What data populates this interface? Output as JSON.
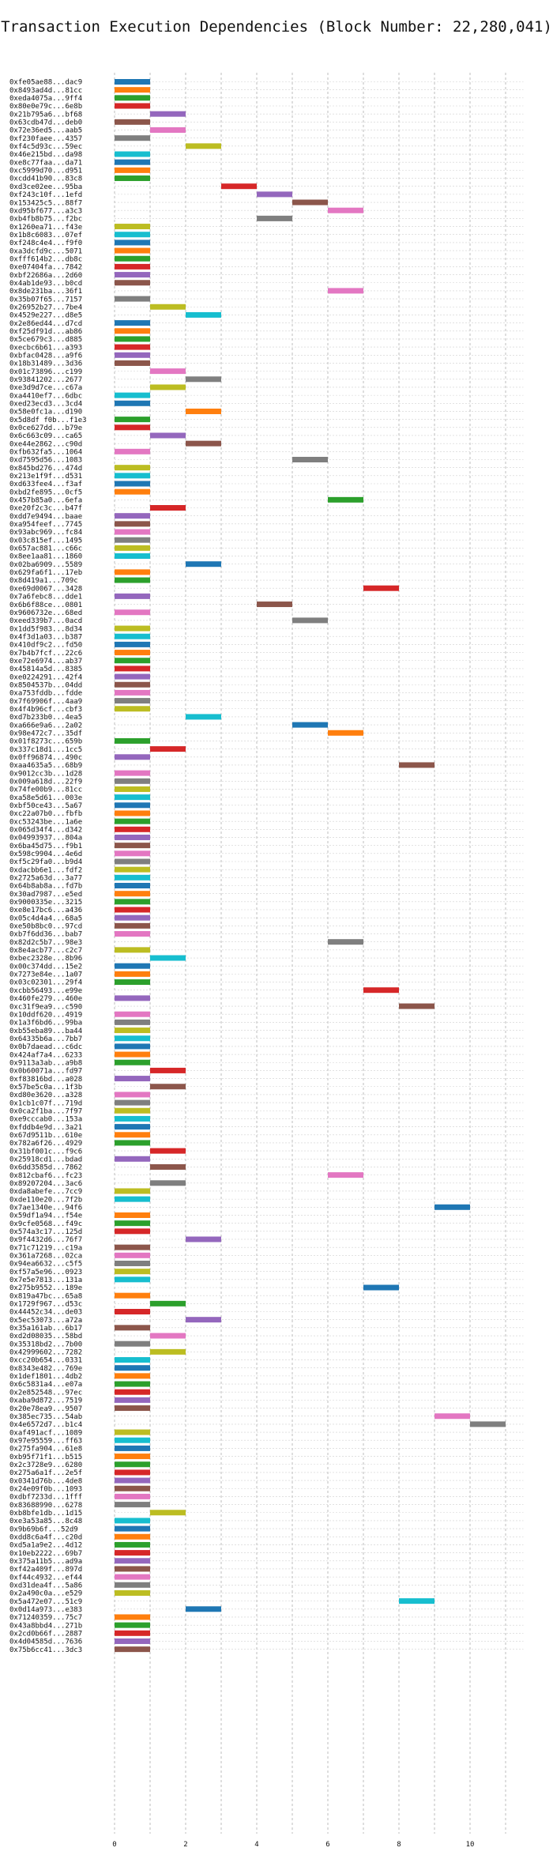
{
  "chart_data": {
    "type": "bar",
    "subtype": "horizontal-gantt",
    "title": "Transaction Execution Dependencies (Block Number: 22,280,041)",
    "xlabel": "",
    "ylabel": "",
    "xlim": [
      0,
      11.5
    ],
    "xticks": [
      0,
      2,
      4,
      6,
      8,
      10
    ],
    "grid": true,
    "palette": [
      "#1f77b4",
      "#ff7f0e",
      "#2ca02c",
      "#d62728",
      "#9467bd",
      "#8c564b",
      "#e377c2",
      "#7f7f7f",
      "#bcbd22",
      "#17becf"
    ],
    "tasks": [
      {
        "tx": "0xfe05ae88...dac9",
        "start": 0
      },
      {
        "tx": "0x8493ad4d...81cc",
        "start": 0
      },
      {
        "tx": "0xeda4075a...9ff4",
        "start": 0
      },
      {
        "tx": "0x80e0e79c...6e8b",
        "start": 0
      },
      {
        "tx": "0x21b795a6...bf68",
        "start": 1
      },
      {
        "tx": "0x63cdb47d...deb0",
        "start": 0
      },
      {
        "tx": "0x72e36ed5...aab5",
        "start": 1
      },
      {
        "tx": "0xf230faee...4357",
        "start": 0
      },
      {
        "tx": "0xf4c5d93c...59ec",
        "start": 2
      },
      {
        "tx": "0x46e215bd...da98",
        "start": 0
      },
      {
        "tx": "0xe8c77faa...da71",
        "start": 0
      },
      {
        "tx": "0xc5999d70...d951",
        "start": 0
      },
      {
        "tx": "0xcdd41b90...83c8",
        "start": 0
      },
      {
        "tx": "0xd3ce02ee...95ba",
        "start": 3
      },
      {
        "tx": "0xf243c10f...1efd",
        "start": 4
      },
      {
        "tx": "0x153425c5...88f7",
        "start": 5
      },
      {
        "tx": "0xd95bf677...a3c3",
        "start": 6
      },
      {
        "tx": "0xb4fb8b75...f2bc",
        "start": 4
      },
      {
        "tx": "0x1260ea71...f43e",
        "start": 0
      },
      {
        "tx": "0x1b8c6083...07ef",
        "start": 0
      },
      {
        "tx": "0xf248c4e4...f9f0",
        "start": 0
      },
      {
        "tx": "0xa3dcfd9c...5071",
        "start": 0
      },
      {
        "tx": "0xfff614b2...db8c",
        "start": 0
      },
      {
        "tx": "0xe07404fa...7842",
        "start": 0
      },
      {
        "tx": "0xbf22686a...2d60",
        "start": 0
      },
      {
        "tx": "0x4ab1de93...b0cd",
        "start": 0
      },
      {
        "tx": "0x8de231ba...36f1",
        "start": 6
      },
      {
        "tx": "0x35b07f65...7157",
        "start": 0
      },
      {
        "tx": "0x26952b27...7be4",
        "start": 1
      },
      {
        "tx": "0x4529e227...d8e5",
        "start": 2
      },
      {
        "tx": "0x2e86ed44...d7cd",
        "start": 0
      },
      {
        "tx": "0xf25df91d...ab86",
        "start": 0
      },
      {
        "tx": "0x5ce679c3...d885",
        "start": 0
      },
      {
        "tx": "0xecbc6b61...a393",
        "start": 0
      },
      {
        "tx": "0xbfac0428...a9f6",
        "start": 0
      },
      {
        "tx": "0x18b31489...3d36",
        "start": 0
      },
      {
        "tx": "0x01c73896...c199",
        "start": 1
      },
      {
        "tx": "0x93841202...2677",
        "start": 2
      },
      {
        "tx": "0xe3d9d7ce...c67a",
        "start": 1
      },
      {
        "tx": "0xa4410ef7...6dbc",
        "start": 0
      },
      {
        "tx": "0xed23ecd3...3cd4",
        "start": 0
      },
      {
        "tx": "0x58e0fc1a...d190",
        "start": 2
      },
      {
        "tx": "0x5d8df f0b...f1e3",
        "start": 0
      },
      {
        "tx": "0x0ce627dd...b79e",
        "start": 0
      },
      {
        "tx": "0x6c663c09...ca65",
        "start": 1
      },
      {
        "tx": "0xe44e2862...c90d",
        "start": 2
      },
      {
        "tx": "0xfb632fa5...1064",
        "start": 0
      },
      {
        "tx": "0xd7595d56...1083",
        "start": 5
      },
      {
        "tx": "0x845bd276...474d",
        "start": 0
      },
      {
        "tx": "0x213e1f9f...d531",
        "start": 0
      },
      {
        "tx": "0xd633fee4...f3af",
        "start": 0
      },
      {
        "tx": "0xbd2fe895...0cf5",
        "start": 0
      },
      {
        "tx": "0x457b85a0...6efa",
        "start": 6
      },
      {
        "tx": "0xe20f2c3c...b47f",
        "start": 1
      },
      {
        "tx": "0xdd7e9494...baae",
        "start": 0
      },
      {
        "tx": "0xa954feef...7745",
        "start": 0
      },
      {
        "tx": "0x93abc969...fc84",
        "start": 0
      },
      {
        "tx": "0x03c815ef...1495",
        "start": 0
      },
      {
        "tx": "0x657ac881...c66c",
        "start": 0
      },
      {
        "tx": "0x8ee1aa81...1860",
        "start": 0
      },
      {
        "tx": "0x02ba6909...5589",
        "start": 2
      },
      {
        "tx": "0x629fa6f1...17eb",
        "start": 0
      },
      {
        "tx": "0x8d419a1...709c",
        "start": 0
      },
      {
        "tx": "0xe69d0067...3428",
        "start": 7
      },
      {
        "tx": "0x7a6febc8...dde1",
        "start": 0
      },
      {
        "tx": "0x6b6f88ce...0801",
        "start": 4
      },
      {
        "tx": "0x9606732e...68ed",
        "start": 0
      },
      {
        "tx": "0xeed339b7...0acd",
        "start": 5
      },
      {
        "tx": "0x1dd5f983...8d34",
        "start": 0
      },
      {
        "tx": "0x4f3d1a03...b387",
        "start": 0
      },
      {
        "tx": "0x410df9c2...fd50",
        "start": 0
      },
      {
        "tx": "0x7b4b7fcf...22c6",
        "start": 0
      },
      {
        "tx": "0xe72e6974...ab37",
        "start": 0
      },
      {
        "tx": "0x45814a5d...8385",
        "start": 0
      },
      {
        "tx": "0xe0224291...42f4",
        "start": 0
      },
      {
        "tx": "0x8504537b...04dd",
        "start": 0
      },
      {
        "tx": "0xa753fddb...fdde",
        "start": 0
      },
      {
        "tx": "0x7f69906f...4aa9",
        "start": 0
      },
      {
        "tx": "0x4f4b96cf...cbf3",
        "start": 0
      },
      {
        "tx": "0xd7b233b0...4ea5",
        "start": 2
      },
      {
        "tx": "0xa666e9a6...2a02",
        "start": 5
      },
      {
        "tx": "0x98e472c7...35df",
        "start": 6
      },
      {
        "tx": "0x01f8273c...659b",
        "start": 0
      },
      {
        "tx": "0x337c18d1...1cc5",
        "start": 1
      },
      {
        "tx": "0x0ff96874...490c",
        "start": 0
      },
      {
        "tx": "0xaa4635a5...68b9",
        "start": 8
      },
      {
        "tx": "0x9012cc3b...1d28",
        "start": 0
      },
      {
        "tx": "0x009a618d...22f9",
        "start": 0
      },
      {
        "tx": "0x74fe00b9...81cc",
        "start": 0
      },
      {
        "tx": "0xa58e5d61...003e",
        "start": 0
      },
      {
        "tx": "0xbf50ce43...5a67",
        "start": 0
      },
      {
        "tx": "0xc22a07b0...fbfb",
        "start": 0
      },
      {
        "tx": "0xc53243be...1a6e",
        "start": 0
      },
      {
        "tx": "0x065d34f4...d342",
        "start": 0
      },
      {
        "tx": "0x04993937...804a",
        "start": 0
      },
      {
        "tx": "0x6ba45d75...f9b1",
        "start": 0
      },
      {
        "tx": "0x598c9904...4e6d",
        "start": 0
      },
      {
        "tx": "0xf5c29fa0...b9d4",
        "start": 0
      },
      {
        "tx": "0xdacbb6e1...fdf2",
        "start": 0
      },
      {
        "tx": "0x2725a63d...3a77",
        "start": 0
      },
      {
        "tx": "0x64b8ab8a...fd7b",
        "start": 0
      },
      {
        "tx": "0x30ad7987...e5ed",
        "start": 0
      },
      {
        "tx": "0x9000335e...3215",
        "start": 0
      },
      {
        "tx": "0xe8e17bc6...a436",
        "start": 0
      },
      {
        "tx": "0x05c4d4a4...68a5",
        "start": 0
      },
      {
        "tx": "0xe50b8bc0...97cd",
        "start": 0
      },
      {
        "tx": "0xb7f6dd36...bab7",
        "start": 0
      },
      {
        "tx": "0x82d2c5b7...98e3",
        "start": 6
      },
      {
        "tx": "0x8e4acb77...c2c7",
        "start": 0
      },
      {
        "tx": "0xbec2328e...8b96",
        "start": 1
      },
      {
        "tx": "0x00c374dd...15e2",
        "start": 0
      },
      {
        "tx": "0x7273e84e...1a07",
        "start": 0
      },
      {
        "tx": "0x03c02301...29f4",
        "start": 0
      },
      {
        "tx": "0xcbb56493...e99e",
        "start": 7
      },
      {
        "tx": "0x460fe279...460e",
        "start": 0
      },
      {
        "tx": "0xc31f9ea9...c590",
        "start": 8
      },
      {
        "tx": "0x10ddf620...4919",
        "start": 0
      },
      {
        "tx": "0x1a3f6bd6...99ba",
        "start": 0
      },
      {
        "tx": "0xb55eba89...ba44",
        "start": 0
      },
      {
        "tx": "0x64335b6a...7bb7",
        "start": 0
      },
      {
        "tx": "0x0b7daead...c6dc",
        "start": 0
      },
      {
        "tx": "0x424af7a4...6233",
        "start": 0
      },
      {
        "tx": "0x9113a3ab...a9b8",
        "start": 0
      },
      {
        "tx": "0x0b60071a...fd97",
        "start": 1
      },
      {
        "tx": "0xf83816bd...a028",
        "start": 0
      },
      {
        "tx": "0x57be5c0a...1f3b",
        "start": 1
      },
      {
        "tx": "0xd80e3620...a328",
        "start": 0
      },
      {
        "tx": "0x1cb1c07f...719d",
        "start": 0
      },
      {
        "tx": "0x0ca2f1ba...7f97",
        "start": 0
      },
      {
        "tx": "0xe9cccab0...153a",
        "start": 0
      },
      {
        "tx": "0xfddb4e9d...3a21",
        "start": 0
      },
      {
        "tx": "0x67d9511b...610e",
        "start": 0
      },
      {
        "tx": "0x782a6f26...4929",
        "start": 0
      },
      {
        "tx": "0x31bf001c...f9c6",
        "start": 1
      },
      {
        "tx": "0x25918cd1...bdad",
        "start": 0
      },
      {
        "tx": "0x6dd3585d...7862",
        "start": 1
      },
      {
        "tx": "0x812cbaf6...fc23",
        "start": 6
      },
      {
        "tx": "0x89207204...3ac6",
        "start": 1
      },
      {
        "tx": "0xda8abefe...7cc9",
        "start": 0
      },
      {
        "tx": "0xde110e20...7f2b",
        "start": 0
      },
      {
        "tx": "0x7ae1340e...94f6",
        "start": 9
      },
      {
        "tx": "0x59df1a94...f54e",
        "start": 0
      },
      {
        "tx": "0x9cfe0568...f49c",
        "start": 0
      },
      {
        "tx": "0x574a3c17...125d",
        "start": 0
      },
      {
        "tx": "0x9f4432d6...76f7",
        "start": 2
      },
      {
        "tx": "0x71c71219...c19a",
        "start": 0
      },
      {
        "tx": "0x361a7268...02ca",
        "start": 0
      },
      {
        "tx": "0x94ea6632...c5f5",
        "start": 0
      },
      {
        "tx": "0xf57a5e96...0923",
        "start": 0
      },
      {
        "tx": "0x7e5e7813...131a",
        "start": 0
      },
      {
        "tx": "0x275b9552...189e",
        "start": 7
      },
      {
        "tx": "0x819a47bc...65a8",
        "start": 0
      },
      {
        "tx": "0x1729f967...d53c",
        "start": 1
      },
      {
        "tx": "0x44452c34...de03",
        "start": 0
      },
      {
        "tx": "0x5ec53073...a72a",
        "start": 2
      },
      {
        "tx": "0x35a161ab...6b17",
        "start": 0
      },
      {
        "tx": "0xd2d08035...58bd",
        "start": 1
      },
      {
        "tx": "0x35318bd2...7b00",
        "start": 0
      },
      {
        "tx": "0x42999602...7282",
        "start": 1
      },
      {
        "tx": "0xcc20b654...0331",
        "start": 0
      },
      {
        "tx": "0x8343e482...769e",
        "start": 0
      },
      {
        "tx": "0x1def1801...4db2",
        "start": 0
      },
      {
        "tx": "0x6c5831a4...e07a",
        "start": 0
      },
      {
        "tx": "0x2e852548...97ec",
        "start": 0
      },
      {
        "tx": "0xaba9d872...7519",
        "start": 0
      },
      {
        "tx": "0x20e78ea9...9507",
        "start": 0
      },
      {
        "tx": "0x385ec735...54ab",
        "start": 9
      },
      {
        "tx": "0x4e6572d7...b1c4",
        "start": 10
      },
      {
        "tx": "0xaf491acf...1089",
        "start": 0
      },
      {
        "tx": "0x97e95559...ff63",
        "start": 0
      },
      {
        "tx": "0x275fa904...61e8",
        "start": 0
      },
      {
        "tx": "0xb95f71f1...b515",
        "start": 0
      },
      {
        "tx": "0x2c3728e9...6280",
        "start": 0
      },
      {
        "tx": "0x275a6a1f...2e5f",
        "start": 0
      },
      {
        "tx": "0x0341d76b...4de8",
        "start": 0
      },
      {
        "tx": "0x24e09f0b...1093",
        "start": 0
      },
      {
        "tx": "0xdbf7233d...1fff",
        "start": 0
      },
      {
        "tx": "0x83688990...6278",
        "start": 0
      },
      {
        "tx": "0xb8bfe1db...1d15",
        "start": 1
      },
      {
        "tx": "0xe3a53a85...8c48",
        "start": 0
      },
      {
        "tx": "0x9b69b6f...52d9",
        "start": 0
      },
      {
        "tx": "0xdd8c6a4f...c20d",
        "start": 0
      },
      {
        "tx": "0xd5a1a9e2...4d12",
        "start": 0
      },
      {
        "tx": "0x10eb2222...69b7",
        "start": 0
      },
      {
        "tx": "0x375a11b5...ad9a",
        "start": 0
      },
      {
        "tx": "0xf42a409f...897d",
        "start": 0
      },
      {
        "tx": "0xf44c4932...ef44",
        "start": 0
      },
      {
        "tx": "0xd31dea4f...5a86",
        "start": 0
      },
      {
        "tx": "0x2a490c0a...e529",
        "start": 0
      },
      {
        "tx": "0x5a472e07...51c9",
        "start": 8
      },
      {
        "tx": "0x0d14a973...e383",
        "start": 2
      },
      {
        "tx": "0x71240359...75c7",
        "start": 0
      },
      {
        "tx": "0x43a8bbd4...271b",
        "start": 0
      },
      {
        "tx": "0x2cd0b66f...2887",
        "start": 0
      },
      {
        "tx": "0x4d04585d...7636",
        "start": 0
      },
      {
        "tx": "0x75b6cc41...3dc3",
        "start": 0
      }
    ]
  }
}
